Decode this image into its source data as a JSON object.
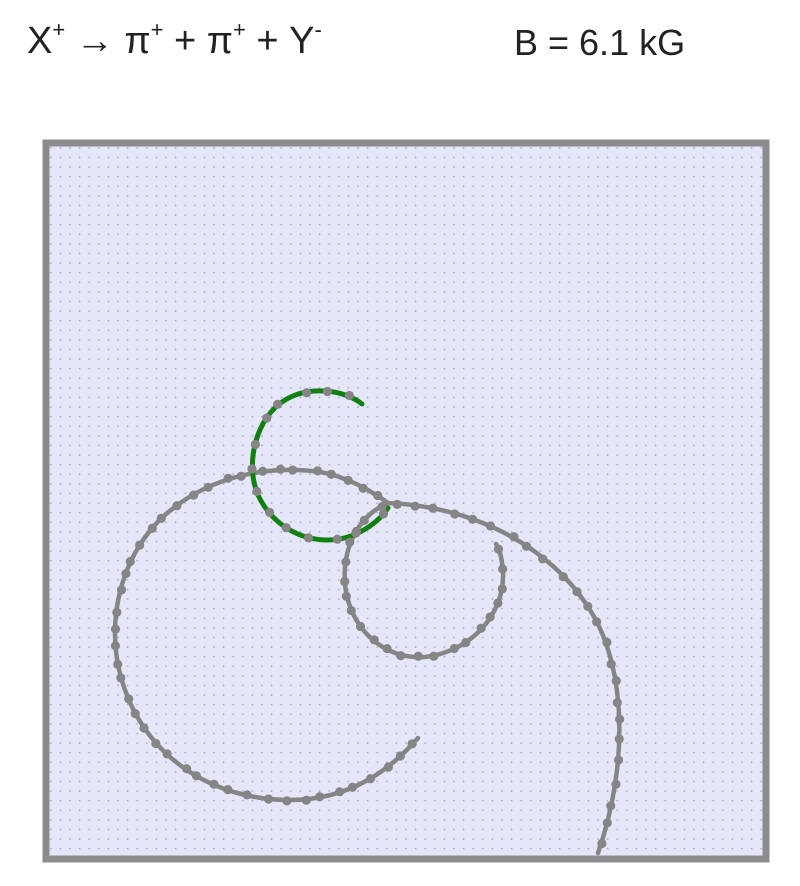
{
  "reaction": {
    "particle_x": "X",
    "charge_x": "+",
    "arrow": "→",
    "pi1": "π",
    "charge_pi1": "+",
    "plus1": "+",
    "pi2": "π",
    "charge_pi2": "+",
    "plus2": "+",
    "particle_y": "Y",
    "charge_y": "-"
  },
  "field": {
    "label": "B = 6.1 kG"
  },
  "colors": {
    "chamber_fill": "#e6e6fa",
    "chamber_border": "#8c8c8e",
    "grid_dot": "#a7a7c9",
    "track_gray": "#858585",
    "track_green": "#118011"
  }
}
